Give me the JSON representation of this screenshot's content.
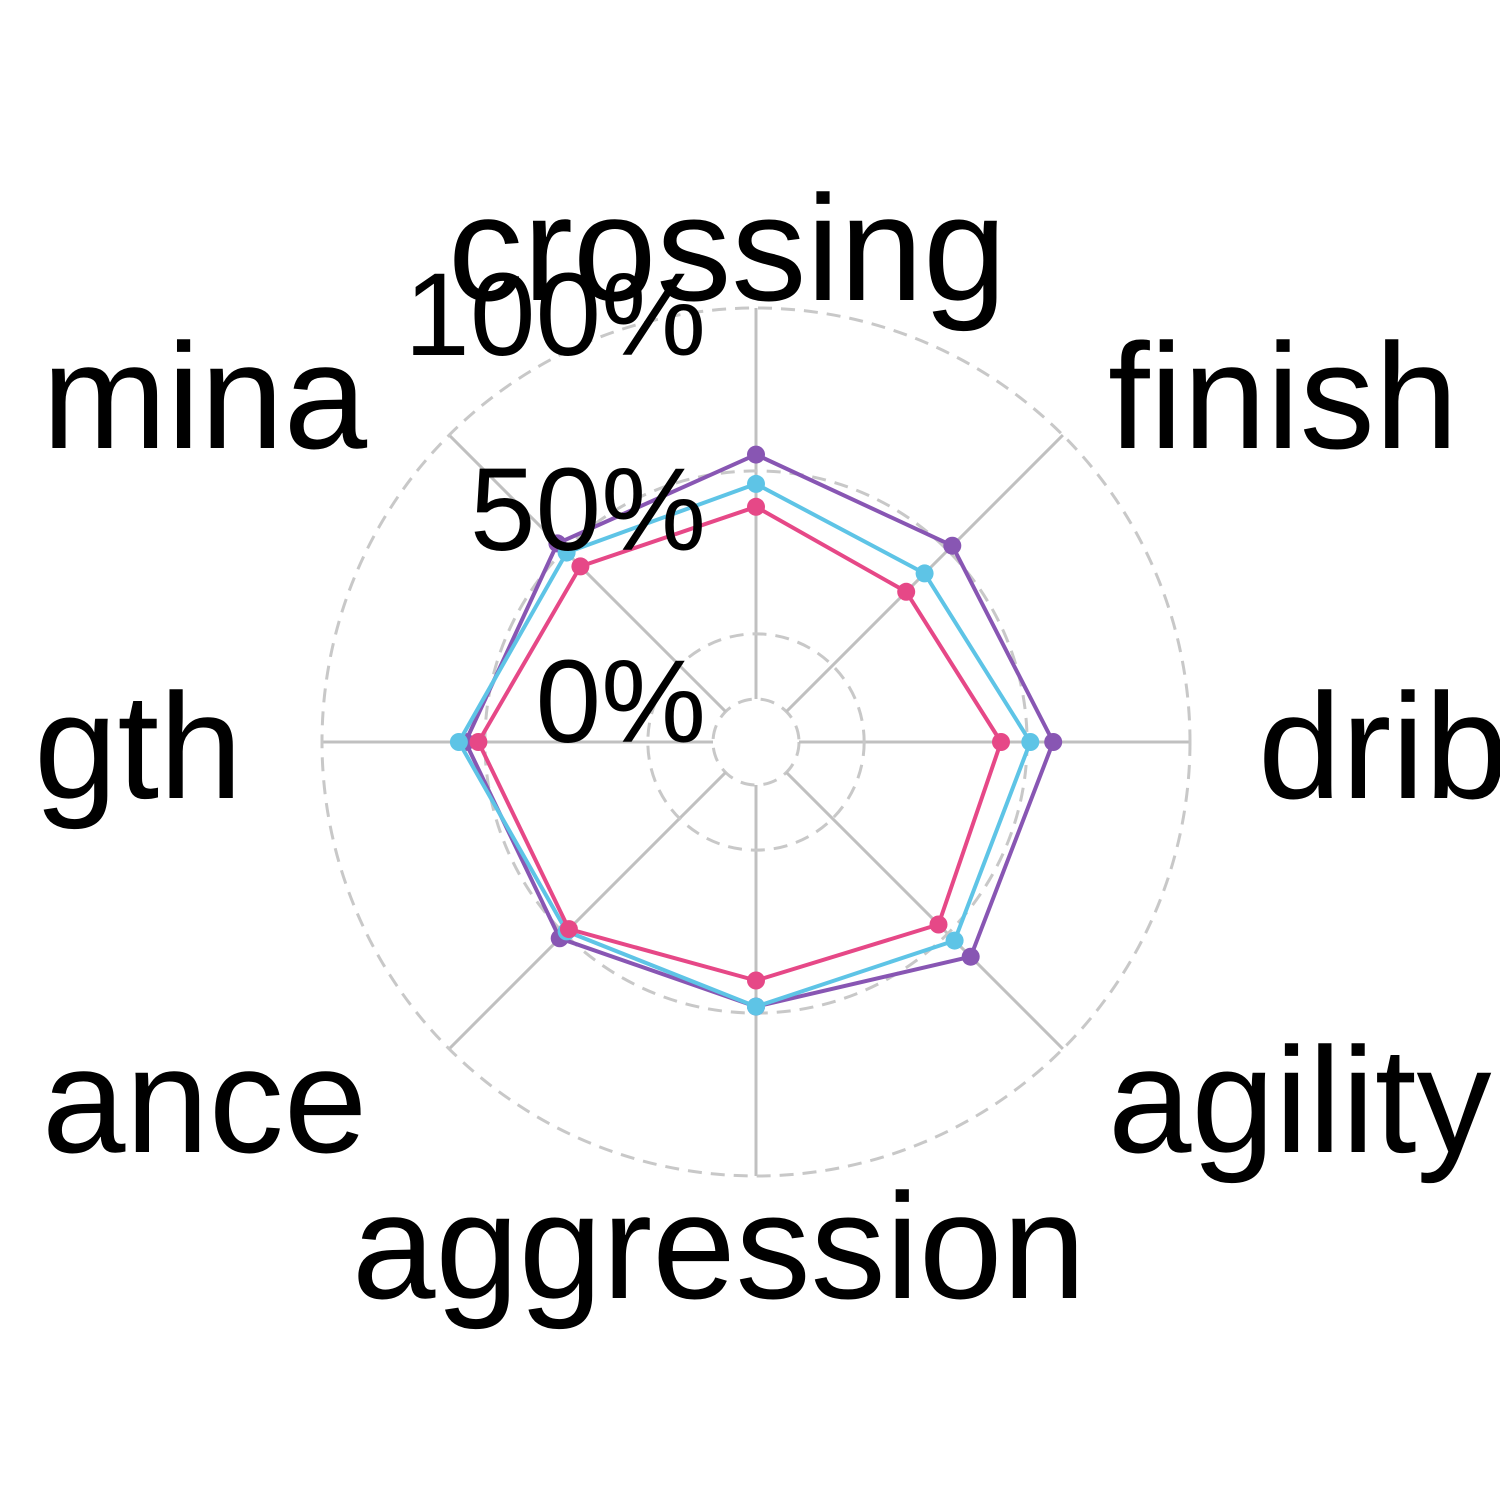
{
  "chart_data": {
    "type": "radar",
    "axes": [
      "crossing",
      "finishing",
      "dribbling",
      "agility",
      "aggression",
      "balance",
      "strength",
      "stamina"
    ],
    "display_labels": [
      "crossing",
      "finish",
      "drib",
      "agility",
      "aggression",
      "ance",
      "gth",
      "mina"
    ],
    "ticks": [
      "0%",
      "50%",
      "100%"
    ],
    "tick_values": [
      0,
      50,
      100
    ],
    "range": [
      -20,
      100
    ],
    "grid": true,
    "series": [
      {
        "color": "#8856b3",
        "values": [
          55,
          52,
          58,
          60,
          48,
          52,
          56,
          53
        ]
      },
      {
        "color": "#5ec4e6",
        "values": [
          46,
          40,
          51,
          53,
          48,
          49,
          58,
          49
        ]
      },
      {
        "color": "#e64887",
        "values": [
          39,
          32,
          42,
          46,
          40,
          48,
          52,
          43
        ]
      }
    ]
  }
}
